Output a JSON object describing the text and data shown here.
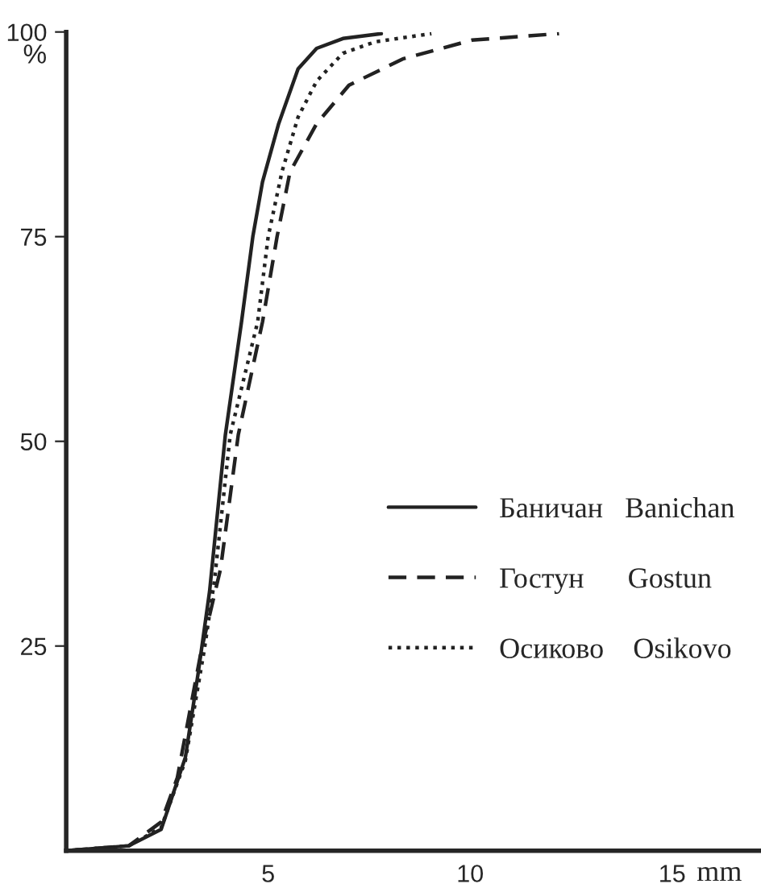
{
  "chart_data": {
    "type": "line",
    "xlabel": "mm",
    "ylabel": "%",
    "xlim": [
      0,
      17.2
    ],
    "ylim": [
      0,
      100
    ],
    "xticks": [
      5,
      10,
      15
    ],
    "yticks": [
      25,
      50,
      75,
      100
    ],
    "grid": false,
    "legend": "right",
    "marker": "none",
    "series": [
      {
        "name": "Баничан   Banichan",
        "color": "#222222",
        "line_style": "solid",
        "x": [
          0,
          1.55,
          2.35,
          2.95,
          3.27,
          3.55,
          3.94,
          4.34,
          4.62,
          4.86,
          5.26,
          5.74,
          6.2,
          6.85,
          7.8
        ],
        "values": [
          0,
          0.6,
          2.6,
          11.4,
          21.8,
          31.7,
          50.8,
          64.6,
          75,
          81.7,
          88.8,
          95.5,
          98,
          99.2,
          99.8
        ]
      },
      {
        "name": "Гостун      Gostun",
        "color": "#222222",
        "line_style": "dashed",
        "x": [
          0,
          1.55,
          2.35,
          2.75,
          3.35,
          3.82,
          4.26,
          4.86,
          5.22,
          5.54,
          6.2,
          7.0,
          8.33,
          10.04,
          12.2
        ],
        "values": [
          0,
          0.6,
          3.5,
          8.9,
          24.6,
          34.4,
          50.8,
          64.6,
          75,
          82.9,
          88.8,
          93.5,
          96.7,
          99,
          99.8
        ]
      },
      {
        "name": "Осиково    Osikovo",
        "color": "#222222",
        "line_style": "dotted",
        "x": [
          0,
          1.55,
          2.35,
          2.95,
          3.42,
          3.67,
          4.06,
          4.74,
          5.0,
          5.34,
          5.74,
          6.2,
          6.85,
          7.65,
          9.04
        ],
        "values": [
          0,
          0.6,
          2.8,
          11.0,
          24.6,
          33,
          50.8,
          64.6,
          75,
          82.9,
          89.6,
          94,
          97.4,
          98.8,
          99.8
        ]
      }
    ]
  }
}
